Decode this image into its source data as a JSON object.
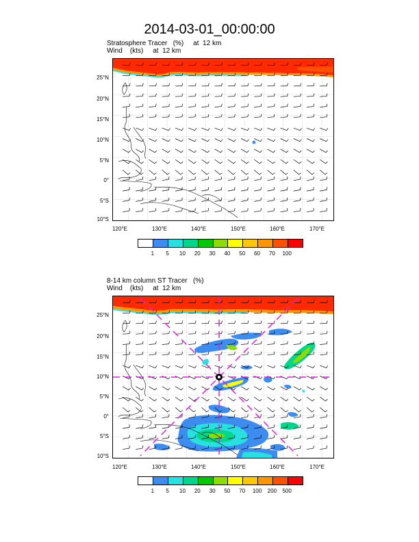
{
  "title": "2014-03-01_00:00:00",
  "panel1": {
    "field_label": "Stratosphere Tracer   (%)     at  12 km",
    "wind_label": "Wind    (kts)     at  12 km",
    "colorbar": {
      "labels": [
        "1",
        "5",
        "10",
        "20",
        "30",
        "40",
        "50",
        "60",
        "70",
        "100"
      ],
      "colors": [
        "#ffffff",
        "#3d8cf0",
        "#28e0e0",
        "#00d78c",
        "#00c800",
        "#8cdc00",
        "#ffff00",
        "#ffc800",
        "#ff9600",
        "#ff5000",
        "#ff0000"
      ]
    }
  },
  "panel2": {
    "field_label": "8-14 km column ST Tracer   (%)",
    "wind_label": "Wind    (kts)     at  12 km",
    "colorbar": {
      "labels": [
        "1",
        "5",
        "10",
        "20",
        "30",
        "50",
        "70",
        "100",
        "200",
        "500"
      ],
      "colors": [
        "#ffffff",
        "#3d8cf0",
        "#28e0e0",
        "#00d78c",
        "#00c800",
        "#8cdc00",
        "#ffff00",
        "#ffc800",
        "#ff9600",
        "#ff5000",
        "#ff0000"
      ]
    }
  },
  "axes": {
    "lat_labels": [
      "25°N",
      "20°N",
      "15°N",
      "10°N",
      "5°N",
      "0°",
      "5°S",
      "10°S"
    ],
    "lon_labels": [
      "120°E",
      "130°E",
      "140°E",
      "150°E",
      "160°E",
      "170°E"
    ],
    "lat_range": [
      -10,
      28.5
    ],
    "lon_range": [
      116,
      173
    ]
  },
  "colors": {
    "high_tracer": "#ff2a00",
    "guide_lines": "#e020e0"
  }
}
